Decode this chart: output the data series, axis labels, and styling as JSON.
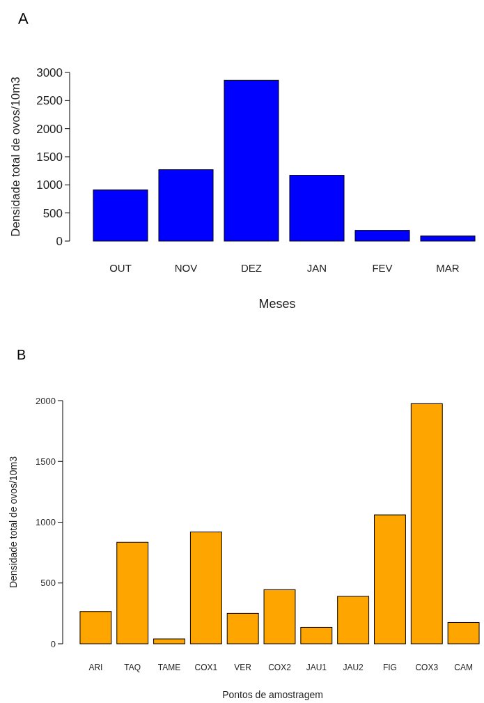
{
  "chart_data": [
    {
      "type": "bar",
      "title": "A",
      "xlabel": "Meses",
      "ylabel": "Densidade total de ovos/10m3",
      "categories": [
        "OUT",
        "NOV",
        "DEZ",
        "JAN",
        "FEV",
        "MAR"
      ],
      "values": [
        910,
        1270,
        2860,
        1170,
        190,
        90
      ],
      "color": "#0000ff",
      "ylim": [
        0,
        3000
      ],
      "yticks": [
        0,
        500,
        1000,
        1500,
        2000,
        2500,
        3000
      ]
    },
    {
      "type": "bar",
      "title": "B",
      "xlabel": "Pontos de amostragem",
      "ylabel": "Densidade total de ovos/10m3",
      "categories": [
        "ARI",
        "TAQ",
        "TAME",
        "COX1",
        "VER",
        "COX2",
        "JAU1",
        "JAU2",
        "FIG",
        "COX3",
        "CAM"
      ],
      "values": [
        265,
        835,
        40,
        920,
        250,
        445,
        135,
        390,
        1060,
        1975,
        175
      ],
      "color": "#ffa500",
      "ylim": [
        0,
        2000
      ],
      "yticks": [
        0,
        500,
        1000,
        1500,
        2000
      ]
    }
  ]
}
